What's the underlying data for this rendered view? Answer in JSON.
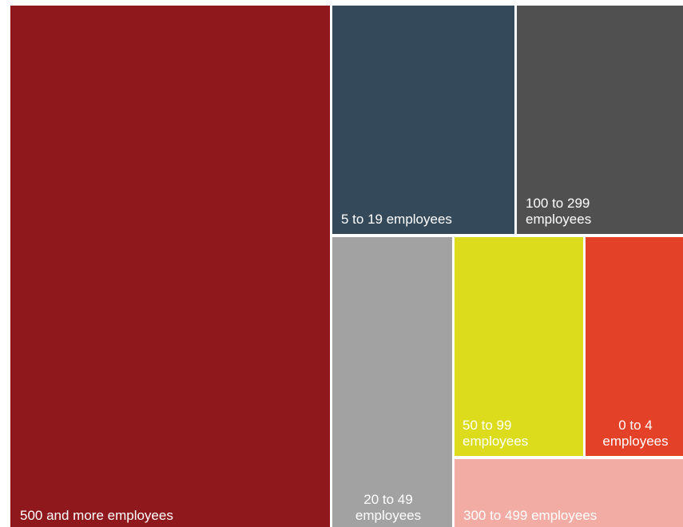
{
  "chart_data": {
    "type": "treemap",
    "title": "",
    "items": [
      {
        "label": "500 and more employees",
        "color": "#8e181c"
      },
      {
        "label": "5 to 19 employees",
        "color": "#344a5a"
      },
      {
        "label": "100 to 299 employees",
        "color": "#505050"
      },
      {
        "label": "20 to 49 employees",
        "color": "#a2a2a2"
      },
      {
        "label": "50 to 99 employees",
        "color": "#dcdc1c"
      },
      {
        "label": "0 to 4 employees",
        "color": "#e44228"
      },
      {
        "label": "300 to 499 employees",
        "color": "#f3aca4"
      }
    ]
  }
}
